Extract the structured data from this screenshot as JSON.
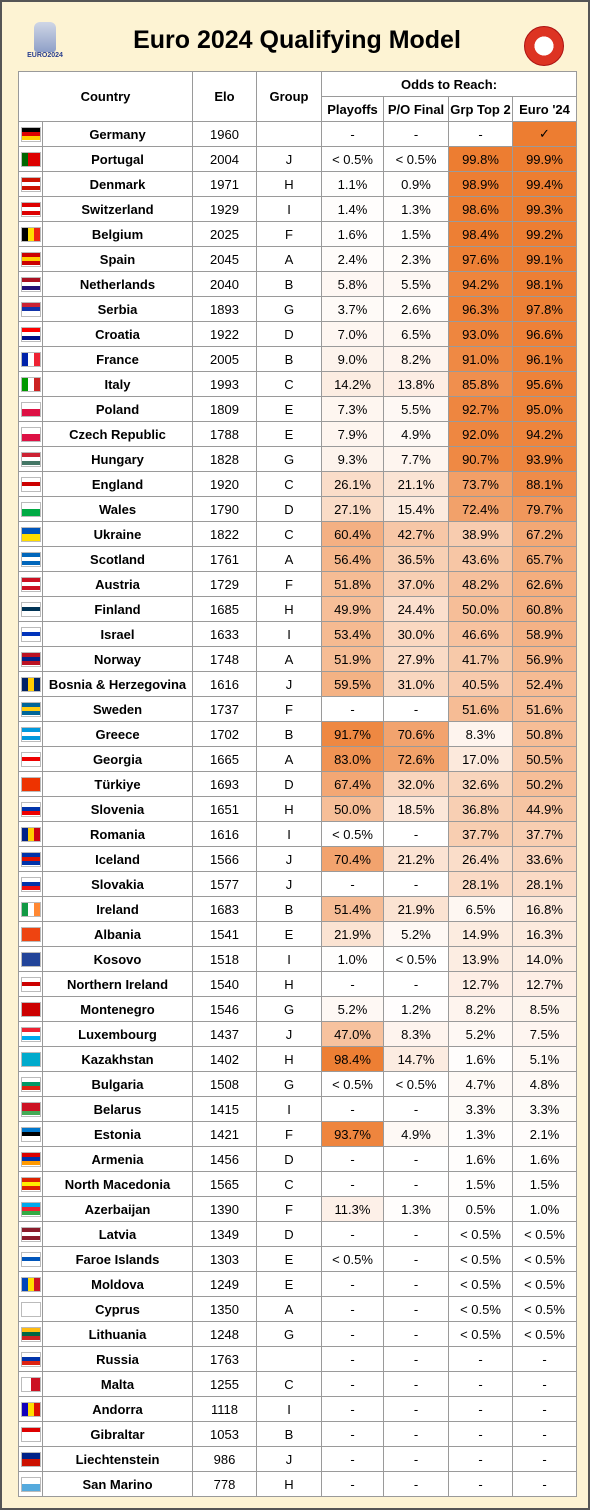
{
  "header": {
    "title": "Euro 2024 Qualifying Model",
    "logo_text": "EURO2024"
  },
  "table": {
    "columns": {
      "country": "Country",
      "elo": "Elo",
      "group": "Group",
      "odds_group": "Odds to Reach:",
      "odds": [
        "Playoffs",
        "P/O Final",
        "Grp Top 2",
        "Euro '24"
      ]
    },
    "rows": [
      [
        "Germany",
        1960,
        null,
        "-",
        "-",
        "-",
        "✓"
      ],
      [
        "Portugal",
        2004,
        "J",
        "< 0.5%",
        "< 0.5%",
        "99.8%",
        "99.9%"
      ],
      [
        "Denmark",
        1971,
        "H",
        "1.1%",
        "0.9%",
        "98.9%",
        "99.4%"
      ],
      [
        "Switzerland",
        1929,
        "I",
        "1.4%",
        "1.3%",
        "98.6%",
        "99.3%"
      ],
      [
        "Belgium",
        2025,
        "F",
        "1.6%",
        "1.5%",
        "98.4%",
        "99.2%"
      ],
      [
        "Spain",
        2045,
        "A",
        "2.4%",
        "2.3%",
        "97.6%",
        "99.1%"
      ],
      [
        "Netherlands",
        2040,
        "B",
        "5.8%",
        "5.5%",
        "94.2%",
        "98.1%"
      ],
      [
        "Serbia",
        1893,
        "G",
        "3.7%",
        "2.6%",
        "96.3%",
        "97.8%"
      ],
      [
        "Croatia",
        1922,
        "D",
        "7.0%",
        "6.5%",
        "93.0%",
        "96.6%"
      ],
      [
        "France",
        2005,
        "B",
        "9.0%",
        "8.2%",
        "91.0%",
        "96.1%"
      ],
      [
        "Italy",
        1993,
        "C",
        "14.2%",
        "13.8%",
        "85.8%",
        "95.6%"
      ],
      [
        "Poland",
        1809,
        "E",
        "7.3%",
        "5.5%",
        "92.7%",
        "95.0%"
      ],
      [
        "Czech Republic",
        1788,
        "E",
        "7.9%",
        "4.9%",
        "92.0%",
        "94.2%"
      ],
      [
        "Hungary",
        1828,
        "G",
        "9.3%",
        "7.7%",
        "90.7%",
        "93.9%"
      ],
      [
        "England",
        1920,
        "C",
        "26.1%",
        "21.1%",
        "73.7%",
        "88.1%"
      ],
      [
        "Wales",
        1790,
        "D",
        "27.1%",
        "15.4%",
        "72.4%",
        "79.7%"
      ],
      [
        "Ukraine",
        1822,
        "C",
        "60.4%",
        "42.7%",
        "38.9%",
        "67.2%"
      ],
      [
        "Scotland",
        1761,
        "A",
        "56.4%",
        "36.5%",
        "43.6%",
        "65.7%"
      ],
      [
        "Austria",
        1729,
        "F",
        "51.8%",
        "37.0%",
        "48.2%",
        "62.6%"
      ],
      [
        "Finland",
        1685,
        "H",
        "49.9%",
        "24.4%",
        "50.0%",
        "60.8%"
      ],
      [
        "Israel",
        1633,
        "I",
        "53.4%",
        "30.0%",
        "46.6%",
        "58.9%"
      ],
      [
        "Norway",
        1748,
        "A",
        "51.9%",
        "27.9%",
        "41.7%",
        "56.9%"
      ],
      [
        "Bosnia & Herzegovina",
        1616,
        "J",
        "59.5%",
        "31.0%",
        "40.5%",
        "52.4%"
      ],
      [
        "Sweden",
        1737,
        "F",
        "-",
        "-",
        "51.6%",
        "51.6%"
      ],
      [
        "Greece",
        1702,
        "B",
        "91.7%",
        "70.6%",
        "8.3%",
        "50.8%"
      ],
      [
        "Georgia",
        1665,
        "A",
        "83.0%",
        "72.6%",
        "17.0%",
        "50.5%"
      ],
      [
        "Türkiye",
        1693,
        "D",
        "67.4%",
        "32.0%",
        "32.6%",
        "50.2%"
      ],
      [
        "Slovenia",
        1651,
        "H",
        "50.0%",
        "18.5%",
        "36.8%",
        "44.9%"
      ],
      [
        "Romania",
        1616,
        "I",
        "< 0.5%",
        "-",
        "37.7%",
        "37.7%"
      ],
      [
        "Iceland",
        1566,
        "J",
        "70.4%",
        "21.2%",
        "26.4%",
        "33.6%"
      ],
      [
        "Slovakia",
        1577,
        "J",
        "-",
        "-",
        "28.1%",
        "28.1%"
      ],
      [
        "Ireland",
        1683,
        "B",
        "51.4%",
        "21.9%",
        "6.5%",
        "16.8%"
      ],
      [
        "Albania",
        1541,
        "E",
        "21.9%",
        "5.2%",
        "14.9%",
        "16.3%"
      ],
      [
        "Kosovo",
        1518,
        "I",
        "1.0%",
        "< 0.5%",
        "13.9%",
        "14.0%"
      ],
      [
        "Northern Ireland",
        1540,
        "H",
        "-",
        "-",
        "12.7%",
        "12.7%"
      ],
      [
        "Montenegro",
        1546,
        "G",
        "5.2%",
        "1.2%",
        "8.2%",
        "8.5%"
      ],
      [
        "Luxembourg",
        1437,
        "J",
        "47.0%",
        "8.3%",
        "5.2%",
        "7.5%"
      ],
      [
        "Kazakhstan",
        1402,
        "H",
        "98.4%",
        "14.7%",
        "1.6%",
        "5.1%"
      ],
      [
        "Bulgaria",
        1508,
        "G",
        "< 0.5%",
        "< 0.5%",
        "4.7%",
        "4.8%"
      ],
      [
        "Belarus",
        1415,
        "I",
        "-",
        "-",
        "3.3%",
        "3.3%"
      ],
      [
        "Estonia",
        1421,
        "F",
        "93.7%",
        "4.9%",
        "1.3%",
        "2.1%"
      ],
      [
        "Armenia",
        1456,
        "D",
        "-",
        "-",
        "1.6%",
        "1.6%"
      ],
      [
        "North Macedonia",
        1565,
        "C",
        "-",
        "-",
        "1.5%",
        "1.5%"
      ],
      [
        "Azerbaijan",
        1390,
        "F",
        "11.3%",
        "1.3%",
        "0.5%",
        "1.0%"
      ],
      [
        "Latvia",
        1349,
        "D",
        "-",
        "-",
        "< 0.5%",
        "< 0.5%"
      ],
      [
        "Faroe Islands",
        1303,
        "E",
        "< 0.5%",
        "-",
        "< 0.5%",
        "< 0.5%"
      ],
      [
        "Moldova",
        1249,
        "E",
        "-",
        "-",
        "< 0.5%",
        "< 0.5%"
      ],
      [
        "Cyprus",
        1350,
        "A",
        "-",
        "-",
        "< 0.5%",
        "< 0.5%"
      ],
      [
        "Lithuania",
        1248,
        "G",
        "-",
        "-",
        "< 0.5%",
        "< 0.5%"
      ],
      [
        "Russia",
        1763,
        null,
        "-",
        "-",
        "-",
        "-"
      ],
      [
        "Malta",
        1255,
        "C",
        "-",
        "-",
        "-",
        "-"
      ],
      [
        "Andorra",
        1118,
        "I",
        "-",
        "-",
        "-",
        "-"
      ],
      [
        "Gibraltar",
        1053,
        "B",
        "-",
        "-",
        "-",
        "-"
      ],
      [
        "Liechtenstein",
        986,
        "J",
        "-",
        "-",
        "-",
        "-"
      ],
      [
        "San Marino",
        778,
        "H",
        "-",
        "-",
        "-",
        "-"
      ]
    ]
  }
}
